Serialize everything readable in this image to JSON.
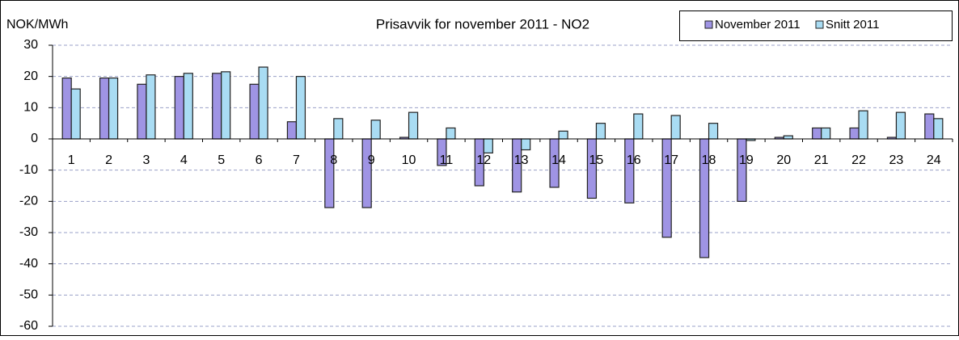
{
  "chart_data": {
    "type": "bar",
    "title": "Prisavvik for november 2011 - NO2",
    "y_label": "NOK/MWh",
    "categories": [
      "1",
      "2",
      "3",
      "4",
      "5",
      "6",
      "7",
      "8",
      "9",
      "10",
      "11",
      "12",
      "13",
      "14",
      "15",
      "16",
      "17",
      "18",
      "19",
      "20",
      "21",
      "22",
      "23",
      "24"
    ],
    "series": [
      {
        "name": "November 2011",
        "color": "#9f94e4",
        "values": [
          19.5,
          19.5,
          17.5,
          20,
          21,
          17.5,
          5.5,
          -22,
          -22,
          0.5,
          -8.5,
          -15,
          -17,
          -15.5,
          -19,
          -20.5,
          -31.5,
          -38,
          -20,
          0.5,
          3.5,
          3.5,
          0.5,
          8
        ]
      },
      {
        "name": "Snitt 2011",
        "color": "#a9dcf3",
        "values": [
          16,
          19.5,
          20.5,
          21,
          21.5,
          23,
          20,
          6.5,
          6,
          8.5,
          3.5,
          -4.5,
          -3.5,
          2.5,
          5,
          8,
          7.5,
          5,
          -0.5,
          1,
          3.5,
          9,
          8.5,
          6.5
        ]
      }
    ],
    "ylim": [
      -60,
      30
    ],
    "yticks": [
      -60,
      -50,
      -40,
      -30,
      -20,
      -10,
      0,
      10,
      20,
      30
    ],
    "grid": true,
    "legend": "top-right"
  }
}
